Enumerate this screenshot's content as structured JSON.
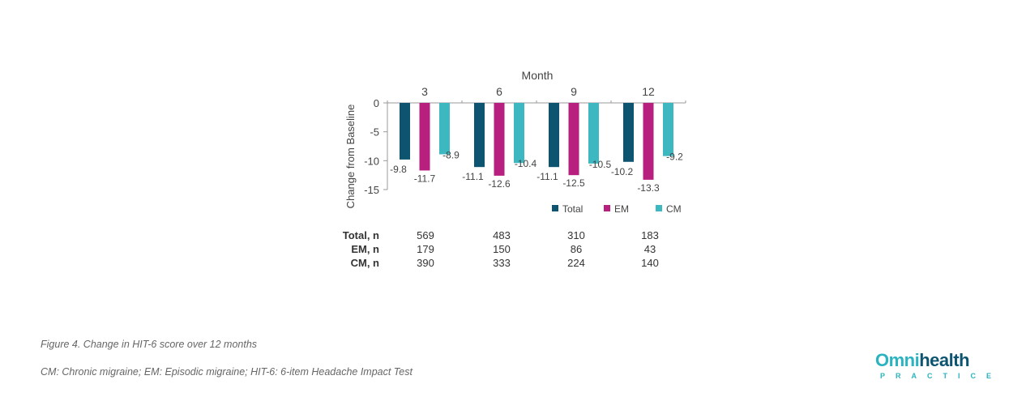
{
  "colors": {
    "Total": "#0d5470",
    "EM": "#b8207f",
    "CM": "#3db8c0"
  },
  "chart_data": {
    "type": "bar",
    "title": "Month",
    "ylabel": "Change from Baseline",
    "categories": [
      "3",
      "6",
      "9",
      "12"
    ],
    "ylim": [
      -15,
      0
    ],
    "yticks": [
      0,
      -5,
      -10,
      -15
    ],
    "legend_position": "bottom-right",
    "series": [
      {
        "name": "Total",
        "values": [
          -9.8,
          -11.1,
          -11.1,
          -10.2
        ]
      },
      {
        "name": "EM",
        "values": [
          -11.7,
          -12.6,
          -12.5,
          -13.3
        ]
      },
      {
        "name": "CM",
        "values": [
          -8.9,
          -10.4,
          -10.5,
          -9.2
        ]
      }
    ]
  },
  "n_table": {
    "rows": [
      {
        "label": "Total, n",
        "values": [
          "569",
          "483",
          "310",
          "183"
        ]
      },
      {
        "label": "EM, n",
        "values": [
          "179",
          "150",
          "86",
          "43"
        ]
      },
      {
        "label": "CM, n",
        "values": [
          "390",
          "333",
          "224",
          "140"
        ]
      }
    ]
  },
  "caption": {
    "figure": "Figure 4. Change in HIT-6 score over 12 months",
    "abbreviations": "CM: Chronic migraine; EM: Episodic migraine; HIT-6: 6-item Headache Impact Test"
  },
  "logo": {
    "part1": "Omni",
    "part2": "health",
    "sub": "PRACTICE"
  }
}
